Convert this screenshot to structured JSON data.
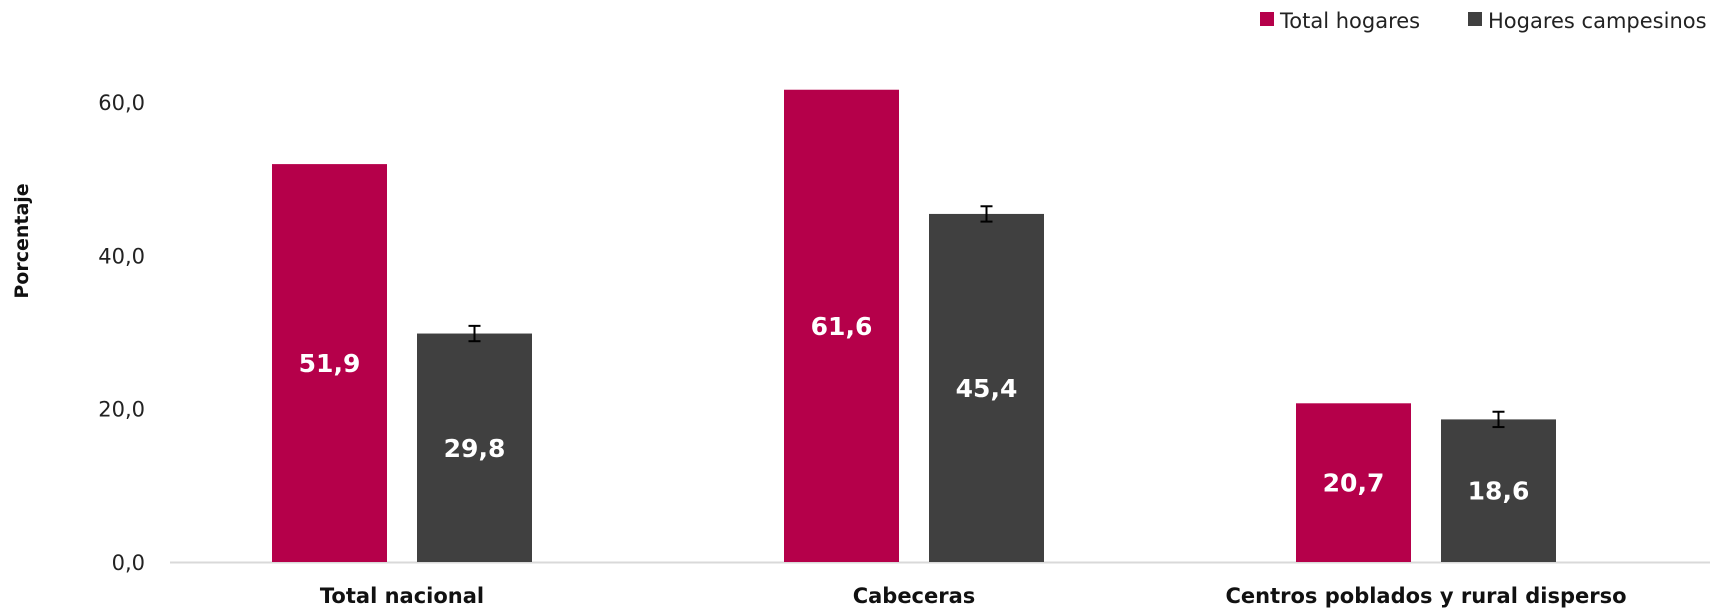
{
  "chart_data": {
    "type": "bar",
    "title": "",
    "xlabel": "",
    "ylabel": "Porcentaje",
    "categories": [
      "Total nacional",
      "Cabeceras",
      "Centros poblados y rural disperso"
    ],
    "series": [
      {
        "name": "Total hogares",
        "color": "#b5004a",
        "values": [
          51.9,
          61.6,
          20.7
        ],
        "labels": [
          "51,9",
          "61,6",
          "20,7"
        ],
        "error": [
          null,
          null,
          null
        ]
      },
      {
        "name": "Hogares campesinos",
        "color": "#404040",
        "values": [
          29.8,
          45.4,
          18.6
        ],
        "labels": [
          "29,8",
          "45,4",
          "18,6"
        ],
        "error": [
          1.0,
          1.0,
          1.0
        ]
      }
    ],
    "ylim": [
      0,
      60
    ],
    "yticks": [
      0,
      20,
      40,
      60
    ],
    "ytick_labels": [
      "0,0",
      "20,0",
      "40,0",
      "60,0"
    ],
    "grid": false,
    "legend_position": "top-right",
    "axis_color": "#d9d9d9"
  }
}
